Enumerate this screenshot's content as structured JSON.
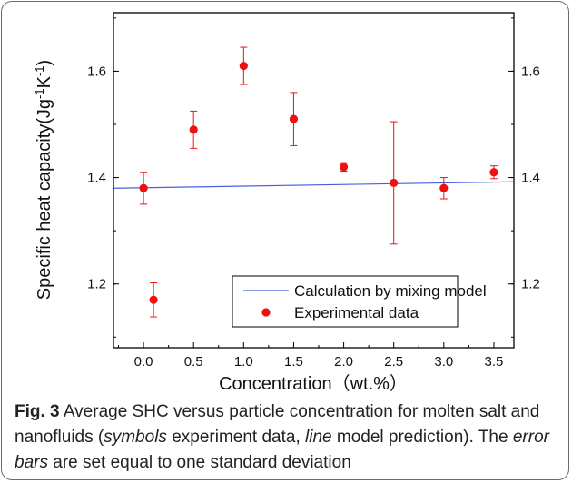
{
  "chart_data": {
    "type": "scatter",
    "xlabel": "Concentration（wt.%）",
    "ylabel_parts": [
      "Specific heat capacity(Jg",
      "-1",
      "K",
      "-1",
      ")"
    ],
    "xlim": [
      -0.3,
      3.7
    ],
    "ylim": [
      1.08,
      1.71
    ],
    "x_ticks": [
      0.0,
      0.5,
      1.0,
      1.5,
      2.0,
      2.5,
      3.0,
      3.5
    ],
    "x_tick_labels": [
      "0.0",
      "0.5",
      "1.0",
      "1.5",
      "2.0",
      "2.5",
      "3.0",
      "3.5"
    ],
    "y_ticks": [
      1.2,
      1.4,
      1.6
    ],
    "y_tick_labels": [
      "1.2",
      "1.4",
      "1.6"
    ],
    "grid": false,
    "legend_placement": "bottom-right",
    "series": [
      {
        "name": "Calculation by mixing model",
        "kind": "line",
        "color": "#4a5fe0",
        "x": [
          -0.3,
          3.7
        ],
        "y": [
          1.38,
          1.392
        ]
      },
      {
        "name": "Experimental data",
        "kind": "scatter",
        "color": "#ee1111",
        "points": [
          {
            "x": 0.0,
            "y": 1.38,
            "err": 0.03
          },
          {
            "x": 0.1,
            "y": 1.17,
            "err": 0.032
          },
          {
            "x": 0.5,
            "y": 1.49,
            "err": 0.035
          },
          {
            "x": 1.0,
            "y": 1.61,
            "err": 0.035
          },
          {
            "x": 1.5,
            "y": 1.51,
            "err": 0.05
          },
          {
            "x": 2.0,
            "y": 1.42,
            "err": 0.008
          },
          {
            "x": 2.5,
            "y": 1.39,
            "err": 0.115
          },
          {
            "x": 3.0,
            "y": 1.38,
            "err": 0.02
          },
          {
            "x": 3.5,
            "y": 1.41,
            "err": 0.012
          }
        ]
      }
    ]
  },
  "caption": {
    "label": "Fig. 3",
    "text1": " Average SHC versus particle concentration for molten salt and nanofluids (",
    "symbols": "symbols",
    "text2": " experiment data, ",
    "line": "line",
    "text3": " model prediction). The ",
    "error_bars": "error bars",
    "text4": " are set equal to one standard deviation"
  }
}
